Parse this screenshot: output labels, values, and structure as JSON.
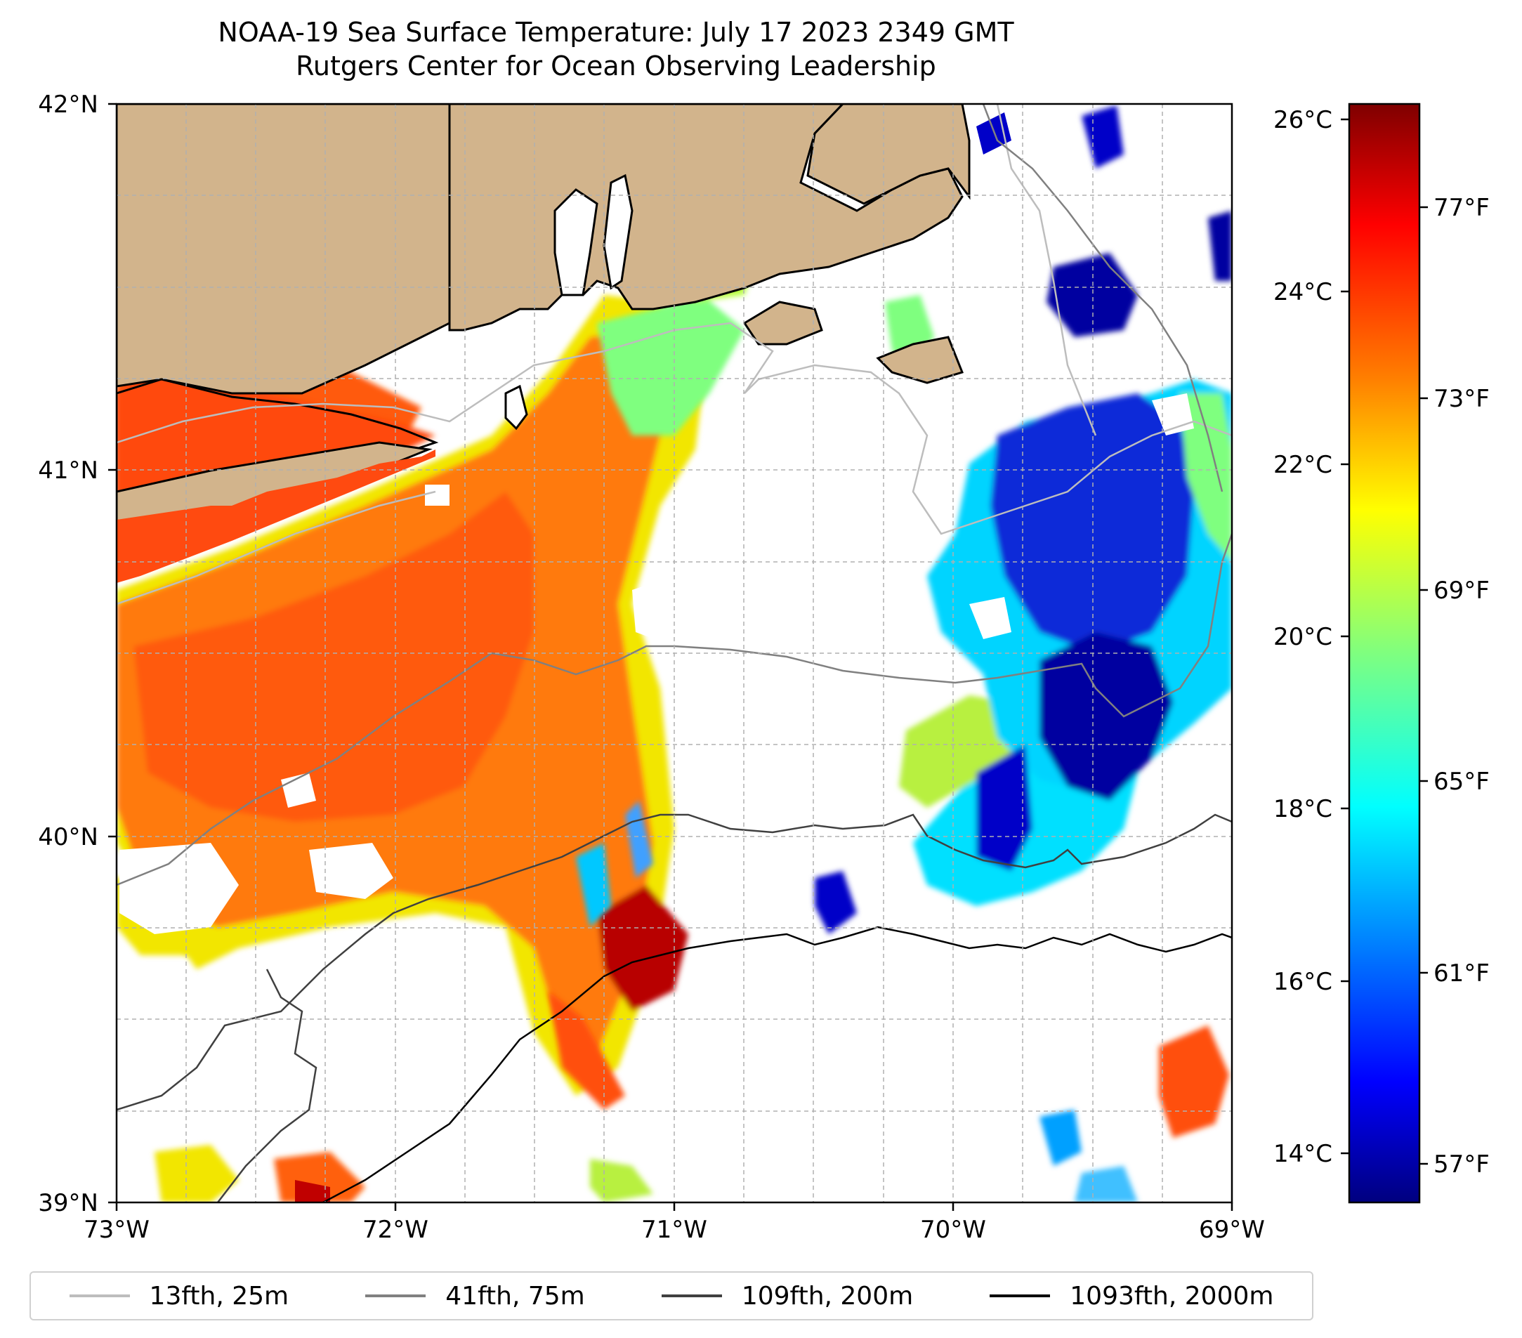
{
  "title": {
    "line1": "NOAA-19 Sea Surface Temperature: July 17 2023 2349 GMT",
    "line2": "Rutgers Center for Ocean Observing Leadership"
  },
  "map": {
    "lon_range": [
      -73,
      -69
    ],
    "lat_range": [
      39,
      42
    ],
    "x_tick_labels": [
      "73°W",
      "72°W",
      "71°W",
      "70°W",
      "69°W"
    ],
    "y_tick_labels": [
      "42°N",
      "41°N",
      "40°N",
      "39°N"
    ],
    "land_color": "#d2b48c",
    "grid": "dashed"
  },
  "colorbar": {
    "celsius_labels": [
      "26°C",
      "24°C",
      "22°C",
      "20°C",
      "18°C",
      "16°C",
      "14°C"
    ],
    "fahrenheit_labels": [
      "77°F",
      "73°F",
      "69°F",
      "65°F",
      "61°F",
      "57°F"
    ],
    "colormap": "jet",
    "colors": [
      "#00007f",
      "#0000ff",
      "#007fff",
      "#00ffff",
      "#7fff7f",
      "#ffff00",
      "#ff7f00",
      "#ff0000",
      "#7f0000"
    ]
  },
  "legend": [
    {
      "label": "13fth, 25m",
      "color": "#bdbdbd"
    },
    {
      "label": "41fth, 75m",
      "color": "#808080"
    },
    {
      "label": "109fth, 200m",
      "color": "#404040"
    },
    {
      "label": "1093fth, 2000m",
      "color": "#000000"
    }
  ],
  "sst_regions": [
    {
      "name": "shelf-warm-core",
      "color": "#ff6a00"
    },
    {
      "name": "shelf-yellow-band",
      "color": "#f2e600"
    },
    {
      "name": "eastern-cold-pool",
      "color": "#0a2ad8"
    },
    {
      "name": "canyon-hot-spot",
      "color": "#c80000"
    }
  ]
}
